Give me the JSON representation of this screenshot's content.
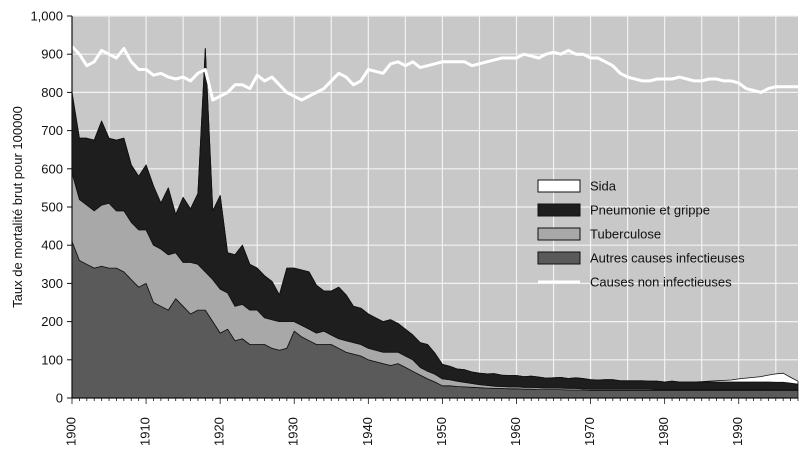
{
  "chart_data": {
    "type": "area",
    "ylabel": "Taux de mortalité brut pour 100000",
    "xlabel": "",
    "xlim": [
      1900,
      1998
    ],
    "ylim": [
      0,
      1000
    ],
    "grid": true,
    "legend_position": "right",
    "x_ticks": [
      1900,
      1910,
      1920,
      1930,
      1940,
      1950,
      1960,
      1970,
      1980,
      1990
    ],
    "y_ticks": [
      0,
      100,
      200,
      300,
      400,
      500,
      600,
      700,
      800,
      900,
      1000
    ],
    "y_tick_labels": [
      "0",
      "100",
      "200",
      "300",
      "400",
      "500",
      "600",
      "700",
      "800",
      "900",
      "1,000"
    ],
    "colors": {
      "plot_background": "#c8c8c8",
      "grid": "#f2f2f2",
      "autres": "#5a5a5a",
      "tuberculose": "#a8a8a8",
      "pneumonie": "#1e1e1e",
      "sida": "#ffffff",
      "non_infectieuses": "#ffffff"
    },
    "legend": [
      {
        "label": "Sida",
        "swatch": "sida"
      },
      {
        "label": "Pneumonie et grippe",
        "swatch": "pneumonie"
      },
      {
        "label": "Tuberculose",
        "swatch": "tuberculose"
      },
      {
        "label": "Autres causes infectieuses",
        "swatch": "autres"
      },
      {
        "label": "Causes non infectieuses",
        "swatch": "line"
      }
    ],
    "x": [
      1900,
      1901,
      1902,
      1903,
      1904,
      1905,
      1906,
      1907,
      1908,
      1909,
      1910,
      1911,
      1912,
      1913,
      1914,
      1915,
      1916,
      1917,
      1918,
      1919,
      1920,
      1921,
      1922,
      1923,
      1924,
      1925,
      1926,
      1927,
      1928,
      1929,
      1930,
      1931,
      1932,
      1933,
      1934,
      1935,
      1936,
      1937,
      1938,
      1939,
      1940,
      1941,
      1942,
      1943,
      1944,
      1945,
      1946,
      1947,
      1948,
      1949,
      1950,
      1951,
      1952,
      1953,
      1954,
      1955,
      1956,
      1957,
      1958,
      1959,
      1960,
      1961,
      1962,
      1963,
      1964,
      1965,
      1966,
      1967,
      1968,
      1969,
      1970,
      1971,
      1972,
      1973,
      1974,
      1975,
      1976,
      1977,
      1978,
      1979,
      1980,
      1981,
      1982,
      1983,
      1984,
      1985,
      1986,
      1987,
      1988,
      1989,
      1990,
      1991,
      1992,
      1993,
      1994,
      1995,
      1996,
      1997,
      1998
    ],
    "series": [
      {
        "name": "Autres causes infectieuses",
        "values": [
          410,
          360,
          350,
          340,
          345,
          340,
          340,
          330,
          310,
          290,
          300,
          250,
          240,
          230,
          260,
          240,
          220,
          230,
          230,
          200,
          170,
          180,
          150,
          155,
          140,
          140,
          140,
          130,
          125,
          130,
          175,
          160,
          150,
          140,
          140,
          140,
          130,
          120,
          115,
          110,
          100,
          95,
          90,
          85,
          90,
          80,
          70,
          60,
          50,
          42,
          32,
          32,
          30,
          29,
          28,
          27,
          26,
          25,
          25,
          24,
          24,
          23,
          23,
          22,
          22,
          22,
          22,
          21,
          21,
          21,
          20,
          20,
          20,
          20,
          20,
          20,
          20,
          20,
          20,
          20,
          20,
          20,
          20,
          20,
          20,
          20,
          20,
          20,
          20,
          20,
          20,
          20,
          20,
          20,
          20,
          20,
          20,
          20,
          20
        ]
      },
      {
        "name": "Tuberculose",
        "values": [
          180,
          160,
          155,
          150,
          160,
          170,
          150,
          160,
          150,
          150,
          140,
          150,
          150,
          145,
          120,
          115,
          135,
          120,
          100,
          110,
          115,
          95,
          90,
          90,
          90,
          90,
          70,
          75,
          75,
          70,
          25,
          30,
          30,
          30,
          35,
          25,
          25,
          30,
          30,
          30,
          30,
          30,
          30,
          35,
          30,
          30,
          30,
          20,
          20,
          20,
          18,
          16,
          14,
          12,
          10,
          8,
          7,
          6,
          5,
          5,
          5,
          5,
          5,
          5,
          4,
          4,
          4,
          4,
          4,
          3,
          3,
          3,
          3,
          3,
          3,
          3,
          3,
          3,
          3,
          2,
          2,
          2,
          2,
          2,
          2,
          2,
          2,
          2,
          2,
          2,
          2,
          2,
          2,
          2,
          2,
          1,
          1,
          1,
          1
        ]
      },
      {
        "name": "Pneumonie et grippe",
        "values": [
          210,
          160,
          175,
          185,
          220,
          170,
          185,
          190,
          150,
          140,
          170,
          155,
          120,
          175,
          100,
          170,
          140,
          185,
          585,
          180,
          245,
          105,
          135,
          155,
          120,
          110,
          110,
          100,
          70,
          140,
          140,
          145,
          150,
          125,
          105,
          115,
          135,
          120,
          95,
          95,
          90,
          85,
          80,
          85,
          75,
          70,
          65,
          65,
          70,
          55,
          38,
          35,
          32,
          33,
          30,
          30,
          30,
          33,
          30,
          30,
          30,
          28,
          29,
          28,
          26,
          27,
          28,
          26,
          28,
          27,
          25,
          24,
          25,
          25,
          22,
          22,
          22,
          22,
          21,
          22,
          20,
          22,
          20,
          20,
          20,
          20,
          20,
          20,
          20,
          20,
          20,
          20,
          20,
          20,
          20,
          20,
          20,
          18,
          15
        ]
      },
      {
        "name": "Sida",
        "values": [
          0,
          0,
          0,
          0,
          0,
          0,
          0,
          0,
          0,
          0,
          0,
          0,
          0,
          0,
          0,
          0,
          0,
          0,
          0,
          0,
          0,
          0,
          0,
          0,
          0,
          0,
          0,
          0,
          0,
          0,
          0,
          0,
          0,
          0,
          0,
          0,
          0,
          0,
          0,
          0,
          0,
          0,
          0,
          0,
          0,
          0,
          0,
          0,
          0,
          0,
          0,
          0,
          0,
          0,
          0,
          0,
          0,
          0,
          0,
          0,
          0,
          0,
          0,
          0,
          0,
          0,
          0,
          0,
          0,
          0,
          0,
          0,
          0,
          0,
          0,
          0,
          0,
          0,
          0,
          0,
          0,
          0,
          0,
          0,
          0,
          1,
          2,
          3,
          4,
          5,
          8,
          10,
          12,
          14,
          18,
          22,
          24,
          15,
          8
        ]
      },
      {
        "name": "Causes non infectieuses",
        "values": [
          920,
          900,
          870,
          880,
          910,
          900,
          890,
          915,
          880,
          860,
          860,
          845,
          850,
          840,
          835,
          840,
          830,
          850,
          860,
          780,
          790,
          800,
          820,
          820,
          810,
          845,
          830,
          840,
          820,
          800,
          790,
          780,
          790,
          800,
          810,
          830,
          850,
          840,
          820,
          830,
          860,
          855,
          850,
          875,
          880,
          870,
          880,
          865,
          870,
          875,
          880,
          880,
          880,
          880,
          870,
          875,
          880,
          885,
          890,
          890,
          890,
          900,
          895,
          890,
          900,
          905,
          900,
          910,
          900,
          900,
          890,
          890,
          880,
          870,
          850,
          840,
          835,
          830,
          830,
          835,
          835,
          835,
          840,
          835,
          830,
          830,
          835,
          835,
          830,
          830,
          825,
          810,
          805,
          800,
          810,
          815,
          815,
          815,
          815
        ]
      }
    ]
  }
}
